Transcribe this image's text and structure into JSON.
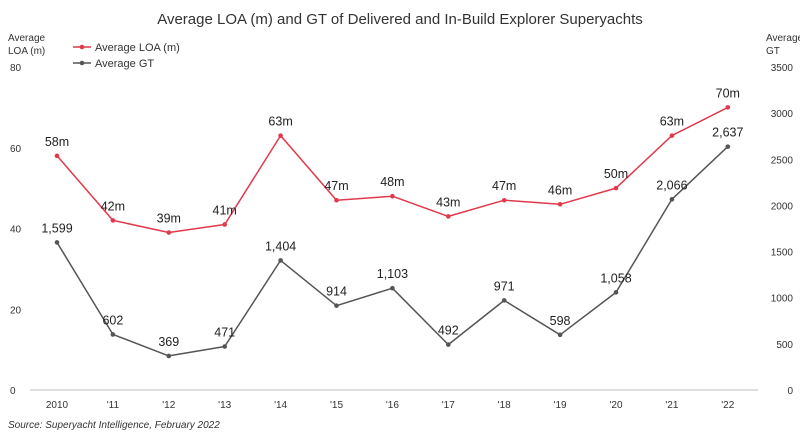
{
  "chart_data": {
    "type": "line",
    "title": "Average LOA (m) and GT of Delivered and In-Build Explorer Superyachts",
    "categories": [
      "2010",
      "'11",
      "'12",
      "'13",
      "'14",
      "'15",
      "'16",
      "'17",
      "'18",
      "'19",
      "'20",
      "'21",
      "'22"
    ],
    "left_axis": {
      "title_line1": "Average",
      "title_line2": "LOA (m)",
      "range": [
        0,
        80
      ],
      "ticks": [
        0,
        20,
        40,
        60,
        80
      ]
    },
    "right_axis": {
      "title_line1": "Average",
      "title_line2": "GT",
      "range": [
        0,
        3500
      ],
      "ticks": [
        0,
        500,
        1000,
        1500,
        2000,
        2500,
        3000,
        3500
      ]
    },
    "series": [
      {
        "name": "Average LOA (m)",
        "axis": "left",
        "color": "#e0394b",
        "values": [
          58,
          42,
          39,
          41,
          63,
          47,
          48,
          43,
          47,
          46,
          50,
          63,
          70
        ],
        "labels": [
          "58m",
          "42m",
          "39m",
          "41m",
          "63m",
          "47m",
          "48m",
          "43m",
          "47m",
          "46m",
          "50m",
          "63m",
          "70m"
        ]
      },
      {
        "name": "Average GT",
        "axis": "right",
        "color": "#555555",
        "values": [
          1599,
          602,
          369,
          471,
          1404,
          914,
          1103,
          492,
          971,
          598,
          1058,
          2066,
          2637
        ],
        "labels": [
          "1,599",
          "602",
          "369",
          "471",
          "1,404",
          "914",
          "1,103",
          "492",
          "971",
          "598",
          "1,058",
          "2,066",
          "2,637"
        ]
      }
    ],
    "legend_position": "top-left",
    "grid": false,
    "source": "Source: Superyacht Intelligence, February 2022"
  }
}
